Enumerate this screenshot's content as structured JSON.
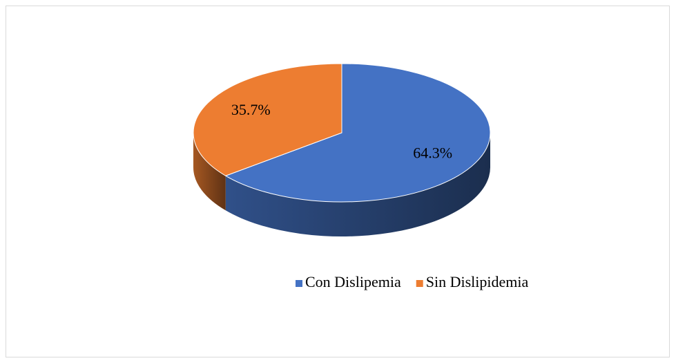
{
  "chart_data": {
    "type": "pie",
    "categories": [
      "Con Dislipemia",
      "Sin Dislipidemia"
    ],
    "values": [
      64.3,
      35.7
    ],
    "value_labels": [
      "64.3%",
      "35.7%"
    ],
    "colors": [
      "#4472c4",
      "#ed7d31"
    ],
    "legend": "bottom"
  }
}
